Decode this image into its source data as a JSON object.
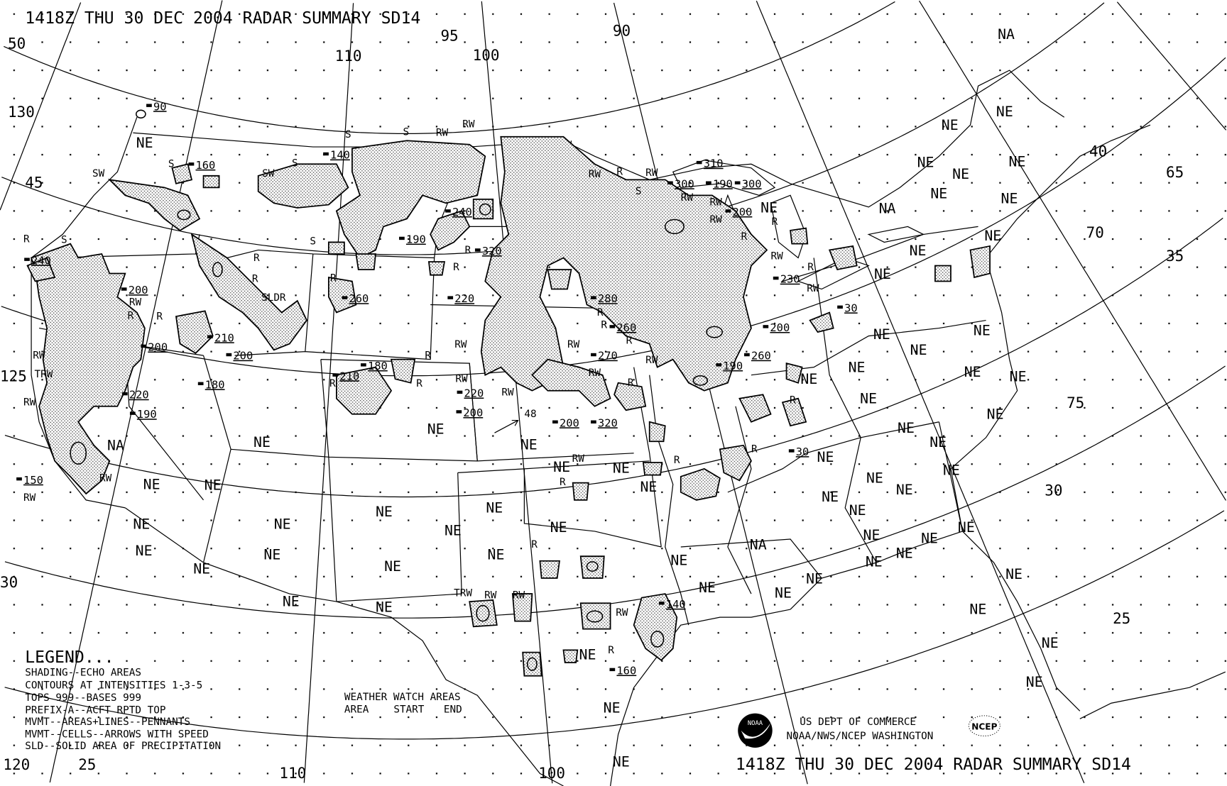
{
  "title": "1418Z THU 30 DEC 2004 RADAR SUMMARY SD14",
  "legend": {
    "heading": "LEGEND...",
    "lines": [
      "SHADING--ECHO AREAS",
      "CONTOURS AT INTENSITIES 1-3-5",
      "TOPS 999--BASES 999",
      "PREFIX-A--ACFT RPTD TOP",
      "MVMT--AREAS+LINES--PENNANTS",
      "MVMT--CELLS--ARROWS WITH SPEED",
      "SLD--SOLID AREA OF PRECIPITATION"
    ]
  },
  "watch_areas": {
    "heading": "WEATHER WATCH AREAS",
    "columns": [
      "AREA",
      "START",
      "END"
    ]
  },
  "agency": [
    "US DEPT OF COMMERCE",
    "NOAA/NWS/NCEP WASHINGTON"
  ],
  "logos": {
    "noaa": "NOAA",
    "ncep": "NCEP"
  },
  "grid_labels": [
    "50",
    "130",
    "45",
    "125",
    "120",
    "25",
    "110",
    "100",
    "110",
    "100",
    "95",
    "90",
    "40",
    "65",
    "70",
    "35",
    "75",
    "30",
    "25",
    "30"
  ],
  "map_labels": {
    "coverage": [
      "NA",
      "NE",
      "NE",
      "NE",
      "NE",
      "NE",
      "NE",
      "NE",
      "NA",
      "NE",
      "NE",
      "NE",
      "NE",
      "NE",
      "NE",
      "NE",
      "NE",
      "NE",
      "NE",
      "NE",
      "NE",
      "NE",
      "NE",
      "NE",
      "NE",
      "NE",
      "NE",
      "NE",
      "NE",
      "NE",
      "NE",
      "NE",
      "NE",
      "NE",
      "NE",
      "NE",
      "NE",
      "NE",
      "NE",
      "NE",
      "NE",
      "NA",
      "NE",
      "NE",
      "NE",
      "NE",
      "NE",
      "NE",
      "NE",
      "NE",
      "NE",
      "NE",
      "NE",
      "NE",
      "NE",
      "NE",
      "NE",
      "NE",
      "NE",
      "NE",
      "NE",
      "NE",
      "NE",
      "NE",
      "NE",
      "NA",
      "NE",
      "NE",
      "NE",
      "NE"
    ],
    "echo_tops": [
      "90",
      "160",
      "140",
      "240",
      "200",
      "200",
      "210",
      "200",
      "180",
      "220",
      "190",
      "150",
      "260",
      "190",
      "240",
      "320",
      "220",
      "210",
      "180",
      "220",
      "200",
      "200",
      "320",
      "280",
      "260",
      "270",
      "310",
      "300",
      "190",
      "300",
      "200",
      "230",
      "200",
      "260",
      "190",
      "30",
      "30",
      "140",
      "160"
    ],
    "precip_types": [
      "S",
      "SW",
      "SW",
      "S",
      "S",
      "S",
      "R",
      "R",
      "R",
      "RW",
      "TRW",
      "RW",
      "RW",
      "RW",
      "RW",
      "SLDR",
      "R",
      "R",
      "R",
      "R",
      "R",
      "R",
      "R",
      "R",
      "RW",
      "RW",
      "RW",
      "RW",
      "R",
      "RW",
      "RW",
      "R",
      "RW",
      "S",
      "S",
      "S",
      "RW",
      "RW",
      "RW",
      "RW",
      "RW",
      "R",
      "R",
      "RW",
      "R",
      "RW",
      "R",
      "RW",
      "R",
      "R",
      "R",
      "R",
      "TRW",
      "RW",
      "RW",
      "RW",
      "R",
      "R",
      "R",
      "RW",
      "R"
    ],
    "cell_speed": "48"
  }
}
